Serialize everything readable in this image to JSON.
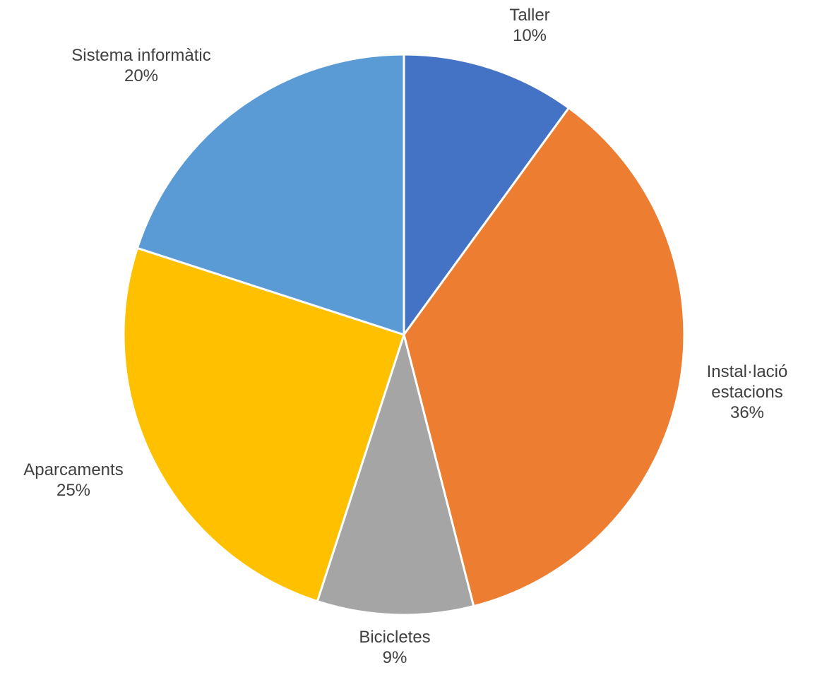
{
  "chart_data": {
    "type": "pie",
    "title": "",
    "start_angle_deg": 0,
    "direction": "clockwise",
    "slices": [
      {
        "label": [
          "Taller"
        ],
        "value": 10,
        "value_label": "10%",
        "color": "#4472C4"
      },
      {
        "label": [
          "Instal·lació",
          "estacions"
        ],
        "value": 36,
        "value_label": "36%",
        "color": "#ED7D31"
      },
      {
        "label": [
          "Bicicletes"
        ],
        "value": 9,
        "value_label": "9%",
        "color": "#A5A5A5"
      },
      {
        "label": [
          "Aparcaments"
        ],
        "value": 25,
        "value_label": "25%",
        "color": "#FFC000"
      },
      {
        "label": [
          "Sistema informàtic"
        ],
        "value": 20,
        "value_label": "20%",
        "color": "#5B9BD5"
      }
    ],
    "legend": "none",
    "data_labels": "outside"
  }
}
